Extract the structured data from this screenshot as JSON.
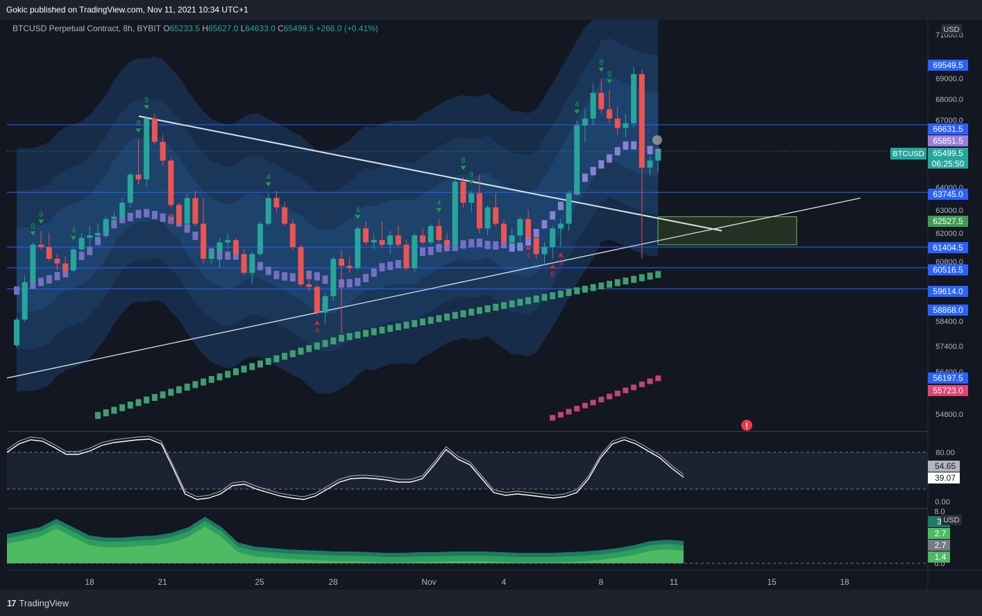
{
  "header": {
    "published": "Gokic published on TradingView.com, Nov 11, 2021 10:34 UTC+1"
  },
  "legend": {
    "symbol": "BTCUSD Perpetual Contract, 8h, BYBIT",
    "o_label": "O",
    "o": "65233.5",
    "h_label": "H",
    "h": "65627.0",
    "l_label": "L",
    "l": "64633.0",
    "c_label": "C",
    "c": "65499.5",
    "change": "+266.0 (+0.41%)"
  },
  "branding": {
    "name": "TradingView"
  },
  "colors": {
    "up": "#26a69a",
    "down": "#ef5350",
    "background": "#131722",
    "hline": "#2962ff",
    "band": "#1c3a63"
  },
  "chart_data": [
    {
      "type": "candlestick",
      "currency": "USD",
      "ticker_label": "BTCUSD",
      "countdown": "06:25:50",
      "x_ticks": [
        "18",
        "21",
        "25",
        "28",
        "Nov",
        "4",
        "8",
        "11",
        "15",
        "18"
      ],
      "y_ticks": [
        "71000.0",
        "69000.0",
        "68000.0",
        "67000.0",
        "64000.0",
        "63000.0",
        "62000.0",
        "60800.0",
        "58400.0",
        "57400.0",
        "56400.0",
        "54800.0"
      ],
      "ylim": [
        54200,
        71800
      ],
      "candles_approx": [
        [
          57200,
          58400,
          57100,
          58300
        ],
        [
          58300,
          60200,
          58200,
          59900
        ],
        [
          59900,
          61600,
          59700,
          61500
        ],
        [
          61500,
          62100,
          61300,
          61400
        ],
        [
          61400,
          62000,
          60800,
          60900
        ],
        [
          60900,
          61100,
          60400,
          60700
        ],
        [
          60700,
          61000,
          60200,
          60400
        ],
        [
          60400,
          61400,
          60300,
          61300
        ],
        [
          61300,
          62000,
          61200,
          61800
        ],
        [
          61800,
          62300,
          61400,
          61900
        ],
        [
          61900,
          62400,
          61500,
          62000
        ],
        [
          62000,
          62700,
          61800,
          62600
        ],
        [
          62600,
          62900,
          62300,
          62700
        ],
        [
          62700,
          63500,
          62500,
          63300
        ],
        [
          63300,
          64600,
          63100,
          64500
        ],
        [
          64500,
          66000,
          64100,
          64300
        ],
        [
          64300,
          67000,
          64000,
          66900
        ],
        [
          66900,
          67100,
          65800,
          65900
        ],
        [
          65900,
          66200,
          64900,
          65100
        ],
        [
          65100,
          65200,
          63100,
          63200
        ],
        [
          63200,
          63300,
          62300,
          62400
        ],
        [
          62400,
          63700,
          62300,
          63500
        ],
        [
          63500,
          63800,
          62300,
          62400
        ],
        [
          62400,
          63500,
          60700,
          60900
        ],
        [
          60900,
          61400,
          60700,
          61200
        ],
        [
          61200,
          61800,
          60500,
          61600
        ],
        [
          61600,
          62000,
          61300,
          61700
        ],
        [
          61700,
          61800,
          60900,
          61100
        ],
        [
          61100,
          61300,
          60200,
          60300
        ],
        [
          60300,
          61200,
          59800,
          61100
        ],
        [
          61100,
          62500,
          61000,
          62400
        ],
        [
          62400,
          63700,
          62300,
          63500
        ],
        [
          63500,
          63800,
          62900,
          63100
        ],
        [
          63100,
          63300,
          62300,
          62400
        ],
        [
          62400,
          62600,
          61300,
          61400
        ],
        [
          61400,
          61500,
          59700,
          59800
        ],
        [
          59800,
          60400,
          59500,
          59700
        ],
        [
          59700,
          59800,
          58500,
          58600
        ],
        [
          58600,
          59400,
          58100,
          59300
        ],
        [
          59300,
          61000,
          59100,
          60900
        ],
        [
          60900,
          61300,
          57700,
          60600
        ],
        [
          60600,
          61000,
          60300,
          60500
        ],
        [
          60500,
          62300,
          60400,
          62200
        ],
        [
          62200,
          62500,
          61500,
          61600
        ],
        [
          61600,
          62000,
          61300,
          61700
        ],
        [
          61700,
          62500,
          61400,
          61500
        ],
        [
          61500,
          62100,
          61100,
          61900
        ],
        [
          61900,
          62300,
          61400,
          61500
        ],
        [
          61500,
          61700,
          60400,
          60500
        ],
        [
          60500,
          62000,
          60300,
          61900
        ],
        [
          61900,
          62200,
          61500,
          61600
        ],
        [
          61600,
          62400,
          61500,
          62300
        ],
        [
          62300,
          62600,
          61600,
          61700
        ],
        [
          61700,
          62000,
          61200,
          61500
        ],
        [
          61500,
          64300,
          61400,
          64200
        ],
        [
          64200,
          64400,
          63100,
          63300
        ],
        [
          63300,
          63800,
          62900,
          63700
        ],
        [
          63700,
          64500,
          62000,
          62200
        ],
        [
          62200,
          63200,
          61900,
          63100
        ],
        [
          63100,
          63700,
          62300,
          62400
        ],
        [
          62400,
          62600,
          61400,
          61600
        ],
        [
          61600,
          62200,
          61300,
          61900
        ],
        [
          61900,
          62700,
          61300,
          62600
        ],
        [
          62600,
          63000,
          61700,
          61800
        ],
        [
          61800,
          62000,
          60900,
          61100
        ],
        [
          61100,
          61600,
          60600,
          61400
        ],
        [
          61400,
          62300,
          60900,
          62200
        ],
        [
          62200,
          62600,
          61400,
          62400
        ],
        [
          62400,
          63800,
          62100,
          63700
        ],
        [
          63700,
          66800,
          63600,
          66600
        ],
        [
          66600,
          67300,
          65900,
          66900
        ],
        [
          66900,
          68400,
          66600,
          68000
        ],
        [
          68000,
          68600,
          67100,
          67300
        ],
        [
          67300,
          68100,
          66700,
          66900
        ],
        [
          66900,
          67400,
          66200,
          66500
        ],
        [
          66500,
          67100,
          66100,
          66700
        ],
        [
          66700,
          69100,
          66500,
          68800
        ],
        [
          68800,
          69000,
          60900,
          64800
        ],
        [
          64800,
          65300,
          64500,
          65100
        ],
        [
          65100,
          65700,
          64600,
          65500
        ]
      ],
      "price_labels": [
        {
          "value": "69549.5",
          "kind": "level"
        },
        {
          "value": "66631.5",
          "kind": "level"
        },
        {
          "value": "65851.5",
          "kind": "indicator"
        },
        {
          "value": "65499.5",
          "kind": "last"
        },
        {
          "value": "63745.0",
          "kind": "level"
        },
        {
          "value": "62527.5",
          "kind": "indicator"
        },
        {
          "value": "61404.5",
          "kind": "level"
        },
        {
          "value": "60516.5",
          "kind": "level"
        },
        {
          "value": "59614.0",
          "kind": "level"
        },
        {
          "value": "58868.0",
          "kind": "level"
        },
        {
          "value": "56197.5",
          "kind": "level"
        },
        {
          "value": "55723.0",
          "kind": "indicator"
        }
      ],
      "horizontal_levels": [
        66631.5,
        63745.0,
        61404.5,
        60516.5,
        59614.0
      ],
      "sequential_marks": [
        {
          "i": 2,
          "label": "8",
          "dir": "down"
        },
        {
          "i": 3,
          "label": "9",
          "dir": "down"
        },
        {
          "i": 7,
          "label": "4",
          "dir": "down"
        },
        {
          "i": 15,
          "label": "8",
          "dir": "down"
        },
        {
          "i": 16,
          "label": "9",
          "dir": "down"
        },
        {
          "i": 19,
          "label": "4",
          "dir": "up"
        },
        {
          "i": 31,
          "label": "4",
          "dir": "down"
        },
        {
          "i": 37,
          "label": "4",
          "dir": "up"
        },
        {
          "i": 42,
          "label": "4",
          "dir": "down"
        },
        {
          "i": 52,
          "label": "4",
          "dir": "down"
        },
        {
          "i": 55,
          "label": "8",
          "dir": "down"
        },
        {
          "i": 56,
          "label": "9",
          "dir": "down"
        },
        {
          "i": 63,
          "label": "4",
          "dir": "up"
        },
        {
          "i": 66,
          "label": "8",
          "dir": "up"
        },
        {
          "i": 67,
          "label": "9",
          "dir": "up"
        },
        {
          "i": 69,
          "label": "4",
          "dir": "down"
        },
        {
          "i": 72,
          "label": "8",
          "dir": "down"
        },
        {
          "i": 73,
          "label": "9",
          "dir": "down"
        }
      ]
    },
    {
      "type": "line",
      "name": "oscillator",
      "y_ticks": [
        "80.00",
        "0.00"
      ],
      "values": [
        "54.65",
        "39.07"
      ]
    },
    {
      "type": "area",
      "name": "lower-pane",
      "y_ticks": [
        "8.0",
        "0.0"
      ],
      "currency": "USD",
      "values": [
        "3.",
        "2.7",
        "2.7",
        "1.4"
      ]
    }
  ]
}
